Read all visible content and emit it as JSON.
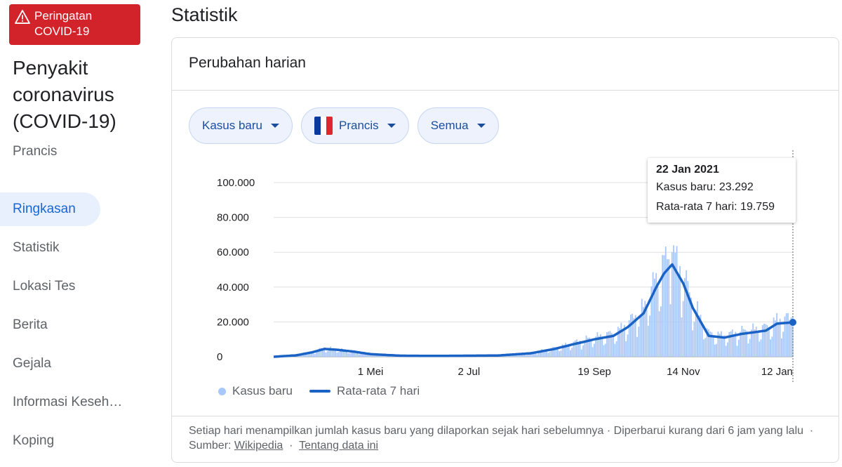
{
  "alert": {
    "line1": "Peringatan",
    "line2": "COVID-19",
    "icon": "warning-icon"
  },
  "sidebar": {
    "title": "Penyakit coronavirus (COVID-19)",
    "country": "Prancis",
    "nav": [
      {
        "label": "Ringkasan",
        "active": true
      },
      {
        "label": "Statistik"
      },
      {
        "label": "Lokasi Tes"
      },
      {
        "label": "Berita"
      },
      {
        "label": "Gejala"
      },
      {
        "label": "Informasi Keseh…"
      },
      {
        "label": "Koping"
      }
    ]
  },
  "main": {
    "title": "Statistik",
    "card_title": "Perubahan harian",
    "filters": {
      "metric": "Kasus baru",
      "country": "Prancis",
      "range": "Semua"
    },
    "tooltip": {
      "date": "22 Jan 2021",
      "cases": "Kasus baru: 23.292",
      "avg": "Rata-rata 7 hari: 19.759"
    },
    "legend": {
      "bars": "Kasus baru",
      "line": "Rata-rata 7 hari"
    },
    "footer": {
      "text": "Setiap hari menampilkan jumlah kasus baru yang dilaporkan sejak hari sebelumnya · Diperbarui kurang dari 6 jam yang lalu",
      "source_label": "Sumber:",
      "source_link": "Wikipedia",
      "about_link": "Tentang data ini"
    }
  },
  "colors": {
    "alert": "#d2232a",
    "bars": "#a8c7fa",
    "line": "#1a62c4",
    "chip_bg": "#edf2fc"
  },
  "chart_data": {
    "type": "bar",
    "ylim": [
      0,
      100000
    ],
    "yticks": [
      "0",
      "20.000",
      "40.000",
      "60.000",
      "80.000",
      "100.000"
    ],
    "xticks": [
      "1 Mei",
      "2 Jul",
      "19 Sep",
      "14 Nov",
      "12 Jan"
    ],
    "series": [
      {
        "name": "Kasus baru",
        "type": "bar"
      },
      {
        "name": "Rata-rata 7 hari",
        "type": "line"
      }
    ],
    "average_points": [
      [
        "Mar 01",
        0
      ],
      [
        "Mar 15",
        800
      ],
      [
        "Mar 25",
        2500
      ],
      [
        "Apr 02",
        4500
      ],
      [
        "Apr 10",
        4000
      ],
      [
        "Apr 20",
        3000
      ],
      [
        "May 01",
        1500
      ],
      [
        "May 20",
        600
      ],
      [
        "Jun 10",
        500
      ],
      [
        "Jul 02",
        600
      ],
      [
        "Jul 20",
        700
      ],
      [
        "Aug 10",
        2000
      ],
      [
        "Aug 25",
        4500
      ],
      [
        "Sep 05",
        7000
      ],
      [
        "Sep 19",
        10000
      ],
      [
        "Oct 01",
        12000
      ],
      [
        "Oct 10",
        17000
      ],
      [
        "Oct 20",
        25000
      ],
      [
        "Oct 28",
        40000
      ],
      [
        "Nov 02",
        48000
      ],
      [
        "Nov 07",
        53000
      ],
      [
        "Nov 14",
        42000
      ],
      [
        "Nov 20",
        28000
      ],
      [
        "Nov 30",
        12000
      ],
      [
        "Dec 10",
        11000
      ],
      [
        "Dec 20",
        13000
      ],
      [
        "Dec 28",
        14000
      ],
      [
        "Jan 05",
        15000
      ],
      [
        "Jan 12",
        19000
      ],
      [
        "Jan 22",
        19759
      ]
    ],
    "daily_peak": {
      "date": "Nov 07",
      "value": 60000
    },
    "selected": {
      "date": "22 Jan 2021",
      "cases": 23292,
      "avg": 19759
    }
  }
}
